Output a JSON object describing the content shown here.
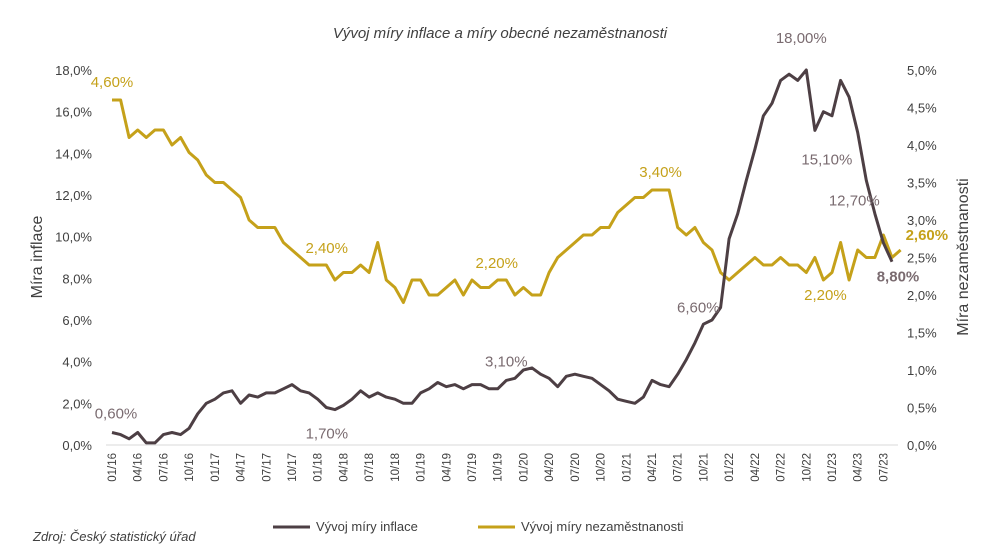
{
  "chart_data": {
    "type": "line",
    "title": "Vývoj míry inflace a míry obecné nezaměstnanosti",
    "ylabel_left": "Míra inflace",
    "ylabel_right": "Míra nezaměstnanosti",
    "ylim_left": [
      0,
      18
    ],
    "ylim_right": [
      0,
      5
    ],
    "yticks_left": [
      "0,0%",
      "2,0%",
      "4,0%",
      "6,0%",
      "8,0%",
      "10,0%",
      "12,0%",
      "14,0%",
      "16,0%",
      "18,0%"
    ],
    "yticks_right": [
      "0,0%",
      "0,5%",
      "1,0%",
      "1,5%",
      "2,0%",
      "2,5%",
      "3,0%",
      "3,5%",
      "4,0%",
      "4,5%",
      "5,0%"
    ],
    "xticks": [
      "01/16",
      "04/16",
      "07/16",
      "10/16",
      "01/17",
      "04/17",
      "07/17",
      "10/17",
      "01/18",
      "04/18",
      "07/18",
      "10/18",
      "01/19",
      "04/19",
      "07/19",
      "10/19",
      "01/20",
      "04/20",
      "07/20",
      "10/20",
      "01/21",
      "04/21",
      "07/21",
      "10/21",
      "01/22",
      "04/22",
      "07/22",
      "10/22",
      "01/23",
      "04/23",
      "07/23"
    ],
    "grid": false,
    "legend_position": "bottom",
    "series": [
      {
        "name": "Vývoj míry inflace",
        "axis": "left",
        "color": "#4d3f44",
        "values": [
          0.6,
          0.5,
          0.3,
          0.6,
          0.1,
          0.1,
          0.5,
          0.6,
          0.5,
          0.8,
          1.5,
          2.0,
          2.2,
          2.5,
          2.6,
          2.0,
          2.4,
          2.3,
          2.5,
          2.5,
          2.7,
          2.9,
          2.6,
          2.5,
          2.2,
          1.8,
          1.7,
          1.9,
          2.2,
          2.6,
          2.3,
          2.5,
          2.3,
          2.2,
          2.0,
          2.0,
          2.5,
          2.7,
          3.0,
          2.8,
          2.9,
          2.7,
          2.9,
          2.9,
          2.7,
          2.7,
          3.1,
          3.2,
          3.6,
          3.7,
          3.4,
          3.2,
          2.8,
          3.3,
          3.4,
          3.3,
          3.2,
          2.9,
          2.6,
          2.2,
          2.1,
          2.0,
          2.3,
          3.1,
          2.9,
          2.8,
          3.4,
          4.1,
          4.9,
          5.8,
          6.0,
          6.6,
          9.9,
          11.1,
          12.7,
          14.2,
          15.8,
          16.4,
          17.5,
          17.8,
          17.5,
          18.0,
          15.1,
          16.0,
          15.8,
          17.5,
          16.7,
          15.0,
          12.7,
          11.1,
          9.7,
          8.8
        ]
      },
      {
        "name": "Vývoj míry nezaměstnanosti",
        "axis": "right",
        "color": "#c5a11a",
        "values": [
          4.6,
          4.6,
          4.1,
          4.2,
          4.1,
          4.2,
          4.2,
          4.0,
          4.1,
          3.9,
          3.8,
          3.6,
          3.5,
          3.5,
          3.4,
          3.3,
          3.0,
          2.9,
          2.9,
          2.9,
          2.7,
          2.6,
          2.5,
          2.4,
          2.4,
          2.4,
          2.2,
          2.3,
          2.3,
          2.4,
          2.3,
          2.7,
          2.2,
          2.1,
          1.9,
          2.2,
          2.2,
          2.0,
          2.0,
          2.1,
          2.2,
          2.0,
          2.2,
          2.1,
          2.1,
          2.2,
          2.2,
          2.0,
          2.1,
          2.0,
          2.0,
          2.3,
          2.5,
          2.6,
          2.7,
          2.8,
          2.8,
          2.9,
          2.9,
          3.1,
          3.2,
          3.3,
          3.3,
          3.4,
          3.4,
          3.4,
          2.9,
          2.8,
          2.9,
          2.7,
          2.6,
          2.3,
          2.2,
          2.3,
          2.4,
          2.5,
          2.4,
          2.4,
          2.5,
          2.4,
          2.4,
          2.3,
          2.5,
          2.2,
          2.3,
          2.7,
          2.2,
          2.6,
          2.5,
          2.5,
          2.8,
          2.5,
          2.6
        ]
      }
    ],
    "annotations": [
      {
        "text": "4,60%",
        "series": 1,
        "index": 0
      },
      {
        "text": "0,60%",
        "series": 0,
        "index": 0
      },
      {
        "text": "2,40%",
        "series": 1,
        "index": 24
      },
      {
        "text": "1,70%",
        "series": 0,
        "index": 26
      },
      {
        "text": "2,20%",
        "series": 1,
        "index": 45
      },
      {
        "text": "3,10%",
        "series": 0,
        "index": 46
      },
      {
        "text": "3,40%",
        "series": 1,
        "index": 64
      },
      {
        "text": "6,60%",
        "series": 0,
        "index": 71
      },
      {
        "text": "18,00%",
        "series": 0,
        "index": 81
      },
      {
        "text": "15,10%",
        "series": 0,
        "index": 82
      },
      {
        "text": "2,20%",
        "series": 1,
        "index": 83
      },
      {
        "text": "12,70%",
        "series": 0,
        "index": 88
      },
      {
        "text": "2,60%",
        "series": 1,
        "index": 92
      },
      {
        "text": "8,80%",
        "series": 0,
        "index": 91
      }
    ]
  },
  "source": "Zdroj: Český statistický úřad"
}
